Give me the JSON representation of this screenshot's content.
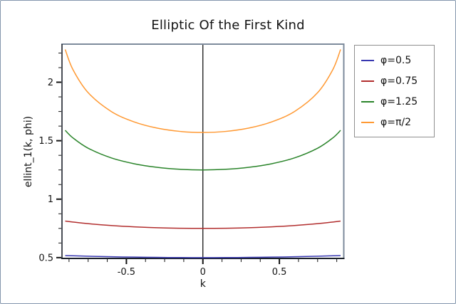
{
  "window": {
    "background": "#ffffff",
    "border_color": "#8496ad"
  },
  "chart_data": {
    "type": "line",
    "title": "Elliptic Of the First Kind",
    "xlabel": "k",
    "ylabel": "ellint_1(k, phi)",
    "xlim": [
      -0.921,
      0.921
    ],
    "ylim": [
      0.493,
      2.32
    ],
    "x_major_ticks": [
      -0.5,
      0,
      0.5
    ],
    "x_tick_labels": [
      "-0.5",
      "0",
      "0.5"
    ],
    "y_major_ticks": [
      0.5,
      1,
      1.5,
      2
    ],
    "y_tick_labels": [
      "0.5",
      "1",
      "1.5",
      "2"
    ],
    "minor_tick_step": 0.125,
    "grid": false,
    "zero_axis_vertical": true,
    "legend_position": "outside-right",
    "axis_colors": {
      "left_bottom_spine": "#1c222b",
      "top_right_spine": "#7d8b9c",
      "zero_axis": "#000000",
      "tick": "#141414"
    },
    "x": [
      -0.9,
      -0.85,
      -0.75,
      -0.6,
      -0.45,
      -0.3,
      -0.15,
      0,
      0.15,
      0.3,
      0.45,
      0.6,
      0.75,
      0.85,
      0.9
    ],
    "series": [
      {
        "name": "φ=0.5",
        "color": "#3737b0",
        "values": [
          0.5176,
          0.5155,
          0.5119,
          0.5074,
          0.5041,
          0.5018,
          0.5004,
          0.5,
          0.5004,
          0.5018,
          0.5041,
          0.5074,
          0.5119,
          0.5155,
          0.5176
        ]
      },
      {
        "name": "φ=0.75",
        "color": "#b22e2e",
        "values": [
          0.8126,
          0.8044,
          0.7904,
          0.7746,
          0.7633,
          0.7558,
          0.7514,
          0.75,
          0.7514,
          0.7558,
          0.7633,
          0.7746,
          0.7904,
          0.8044,
          0.8126
        ]
      },
      {
        "name": "φ=1.25",
        "color": "#2a842a",
        "values": [
          1.5891,
          1.5248,
          1.4359,
          1.3534,
          1.3032,
          1.2723,
          1.2554,
          1.25,
          1.2554,
          1.2723,
          1.3032,
          1.3534,
          1.4359,
          1.5248,
          1.5891
        ]
      },
      {
        "name": "φ=π/2",
        "color": "#ff9933",
        "values": [
          2.2805,
          2.11,
          1.911,
          1.7508,
          1.6612,
          1.608,
          1.5797,
          1.5708,
          1.5797,
          1.608,
          1.6612,
          1.7508,
          1.911,
          2.11,
          2.2805
        ]
      }
    ]
  },
  "legend": {
    "items": [
      {
        "label": "φ=0.5",
        "color": "#3737b0"
      },
      {
        "label": "φ=0.75",
        "color": "#b22e2e"
      },
      {
        "label": "φ=1.25",
        "color": "#2a842a"
      },
      {
        "label": "φ=π/2",
        "color": "#ff9933"
      }
    ]
  }
}
